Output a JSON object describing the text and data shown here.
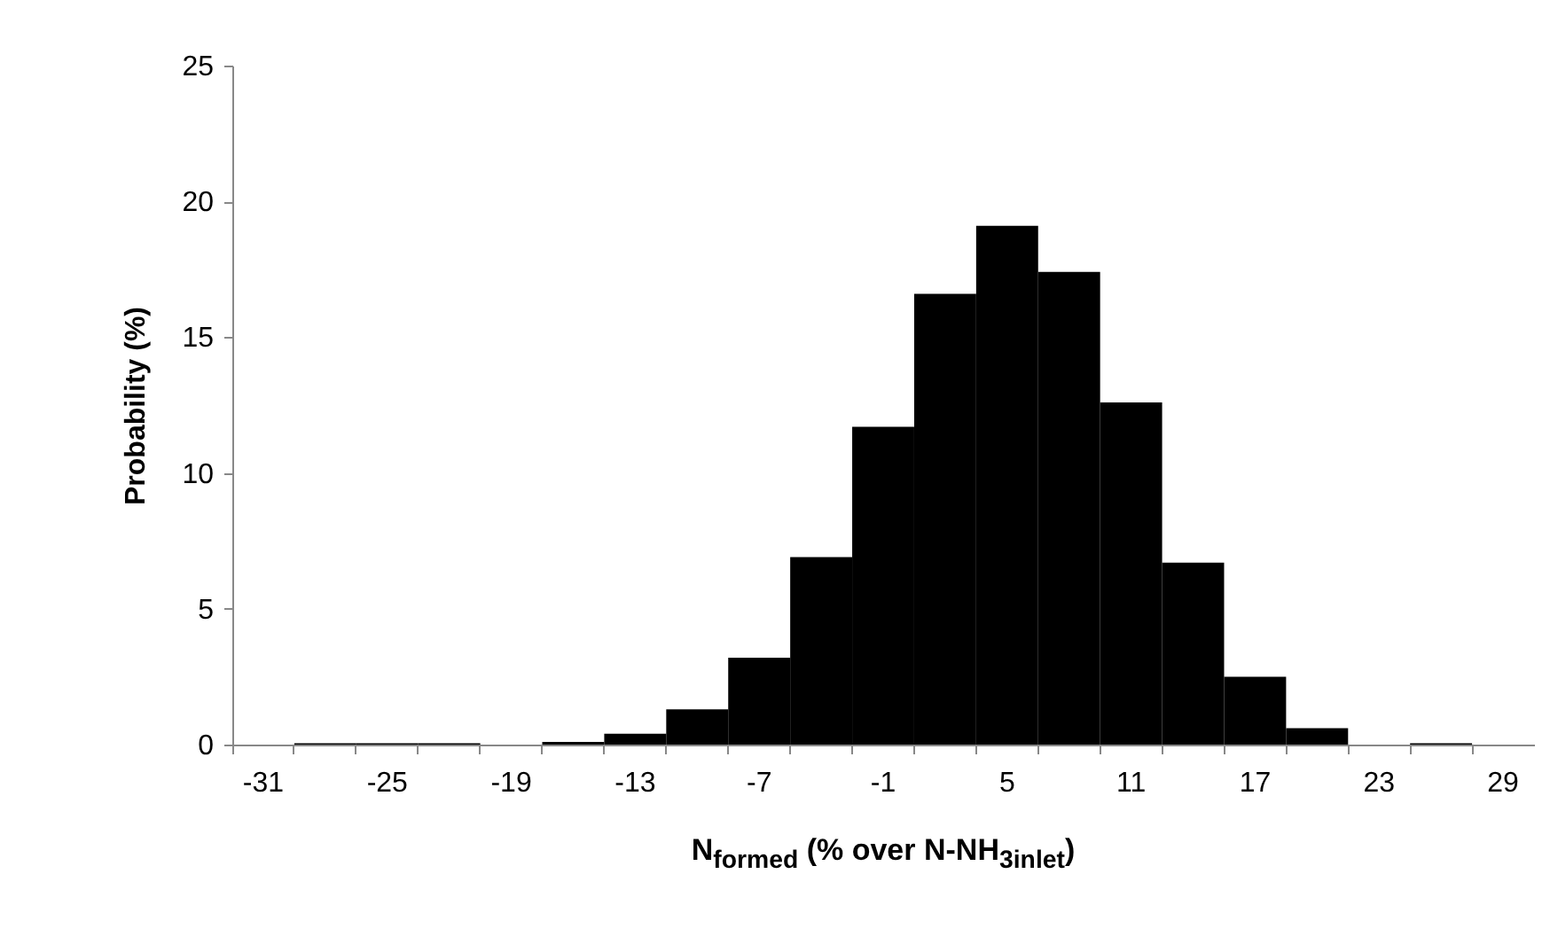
{
  "chart_data": {
    "type": "bar",
    "xlabel": "N$_{formed}$ (% over N-NH$_{3inlet}$)",
    "ylabel": "Probability (%)",
    "categories": [
      "-31",
      null,
      "-25",
      null,
      "-19",
      null,
      "-13",
      null,
      "-7",
      null,
      "-1",
      null,
      "5",
      null,
      "11",
      null,
      "17",
      null,
      "23",
      null,
      "29"
    ],
    "values": [
      0,
      0.05,
      0.05,
      0.05,
      0,
      0.1,
      0.4,
      1.3,
      3.2,
      6.9,
      11.7,
      16.6,
      19.1,
      17.4,
      12.6,
      6.7,
      2.5,
      0.6,
      0,
      0.05,
      0
    ],
    "color": "#000000",
    "ylim": [
      0,
      25
    ],
    "yticks": [
      0,
      5,
      10,
      15,
      20,
      25
    ],
    "grid": false
  }
}
